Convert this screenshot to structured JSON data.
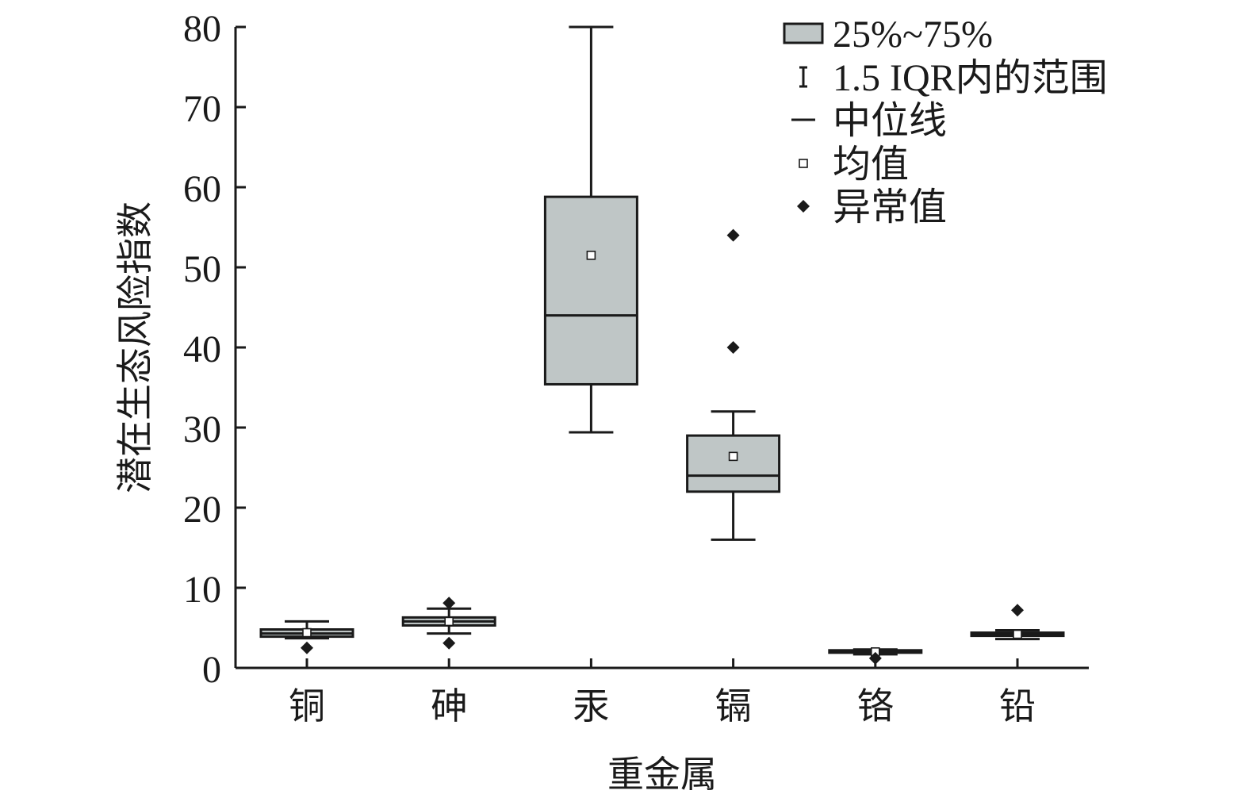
{
  "chart_data": {
    "type": "box",
    "xlabel": "重金属",
    "ylabel": "潜在生态风险指数",
    "ylim": [
      0,
      80
    ],
    "yticks": [
      0,
      10,
      20,
      30,
      40,
      50,
      60,
      70,
      80
    ],
    "grid": false,
    "legend_position": "top-right",
    "colors": {
      "box_fill": "#bfc6c6",
      "stroke": "#1a1a1a",
      "marker": "#1a1a1a"
    },
    "categories": [
      "铜",
      "砷",
      "汞",
      "镉",
      "铬",
      "铅"
    ],
    "boxes": [
      {
        "category": "铜",
        "whisker_low": 3.7,
        "q1": 3.9,
        "median": 4.3,
        "q3": 4.8,
        "whisker_high": 5.8,
        "mean": 4.4,
        "outliers": [
          2.5
        ]
      },
      {
        "category": "砷",
        "whisker_low": 4.3,
        "q1": 5.3,
        "median": 5.8,
        "q3": 6.3,
        "whisker_high": 7.4,
        "mean": 5.8,
        "outliers": [
          8.1,
          3.1
        ]
      },
      {
        "category": "汞",
        "whisker_low": 29.4,
        "q1": 35.4,
        "median": 44.0,
        "q3": 58.8,
        "whisker_high": 80.0,
        "mean": 51.5,
        "outliers": []
      },
      {
        "category": "镉",
        "whisker_low": 16.0,
        "q1": 22.0,
        "median": 24.0,
        "q3": 29.0,
        "whisker_high": 32.0,
        "mean": 26.4,
        "outliers": [
          54.0,
          40.0
        ]
      },
      {
        "category": "铬",
        "whisker_low": 1.7,
        "q1": 1.9,
        "median": 2.0,
        "q3": 2.2,
        "whisker_high": 2.3,
        "mean": 2.0,
        "outliers": [
          1.2
        ]
      },
      {
        "category": "铅",
        "whisker_low": 3.6,
        "q1": 4.0,
        "median": 4.2,
        "q3": 4.4,
        "whisker_high": 4.7,
        "mean": 4.2,
        "outliers": [
          7.2
        ]
      }
    ],
    "legend": [
      {
        "symbol": "box",
        "label": "25%~75%"
      },
      {
        "symbol": "whisker",
        "label": "1.5 IQR内的范围"
      },
      {
        "symbol": "median",
        "label": "中位线"
      },
      {
        "symbol": "mean",
        "label": "均值"
      },
      {
        "symbol": "outlier",
        "label": "异常值"
      }
    ]
  }
}
